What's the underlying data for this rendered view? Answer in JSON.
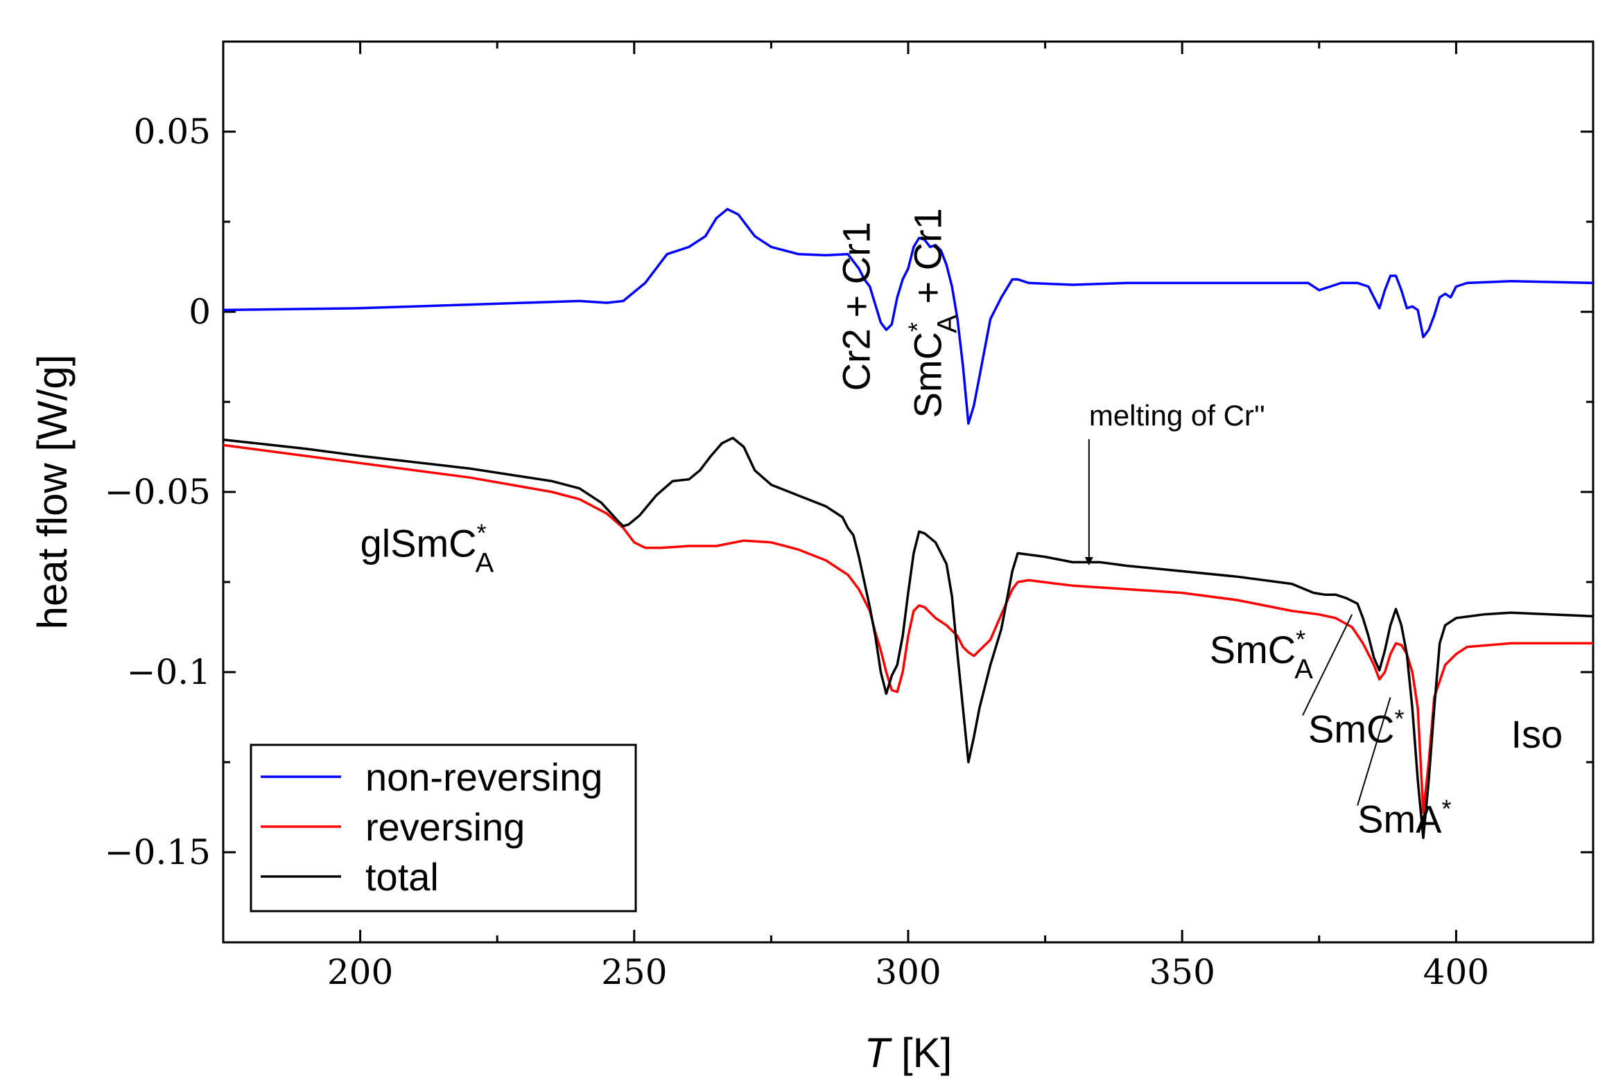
{
  "chart_data": {
    "type": "line",
    "xlabel": {
      "italic": "T",
      "rest": " [K]"
    },
    "ylabel": "heat flow [W/g]",
    "xlim": [
      175,
      425
    ],
    "ylim": [
      -0.175,
      0.075
    ],
    "xticks": [
      200,
      250,
      300,
      350,
      400
    ],
    "yticks": [
      {
        "value": 0.05,
        "label": "0.05"
      },
      {
        "value": 0,
        "label": "0"
      },
      {
        "value": -0.05,
        "label": "−0.05"
      },
      {
        "value": -0.1,
        "label": "−0.1"
      },
      {
        "value": -0.15,
        "label": "−0.15"
      }
    ],
    "legend": {
      "placement": "bottom-left",
      "entries": [
        {
          "name": "non-reversing",
          "color": "#0000ff"
        },
        {
          "name": "reversing",
          "color": "#ff0000"
        },
        {
          "name": "total",
          "color": "#000000"
        }
      ]
    },
    "series": [
      {
        "name": "non-reversing",
        "color": "#0000ff",
        "points": [
          [
            175,
            0.0005
          ],
          [
            200,
            0.001
          ],
          [
            220,
            0.002
          ],
          [
            240,
            0.003
          ],
          [
            245,
            0.0025
          ],
          [
            248,
            0.003
          ],
          [
            252,
            0.008
          ],
          [
            256,
            0.016
          ],
          [
            260,
            0.018
          ],
          [
            263,
            0.021
          ],
          [
            265,
            0.026
          ],
          [
            267,
            0.0285
          ],
          [
            269,
            0.027
          ],
          [
            272,
            0.021
          ],
          [
            275,
            0.018
          ],
          [
            280,
            0.016
          ],
          [
            285,
            0.0157
          ],
          [
            289,
            0.016
          ],
          [
            291,
            0.012
          ],
          [
            292,
            0.009
          ],
          [
            293,
            0.007
          ],
          [
            294,
            0.002
          ],
          [
            295,
            -0.003
          ],
          [
            296,
            -0.005
          ],
          [
            297,
            -0.0035
          ],
          [
            298,
            0.004
          ],
          [
            299,
            0.009
          ],
          [
            300,
            0.012
          ],
          [
            301,
            0.018
          ],
          [
            302,
            0.0205
          ],
          [
            303,
            0.02
          ],
          [
            304,
            0.018
          ],
          [
            305,
            0.0185
          ],
          [
            306,
            0.017
          ],
          [
            307,
            0.013
          ],
          [
            308,
            0.007
          ],
          [
            309,
            -0.002
          ],
          [
            310,
            -0.015
          ],
          [
            311,
            -0.031
          ],
          [
            312,
            -0.026
          ],
          [
            313,
            -0.018
          ],
          [
            314,
            -0.01
          ],
          [
            315,
            -0.002
          ],
          [
            317,
            0.004
          ],
          [
            319,
            0.009
          ],
          [
            320,
            0.009
          ],
          [
            322,
            0.008
          ],
          [
            330,
            0.0075
          ],
          [
            340,
            0.008
          ],
          [
            350,
            0.008
          ],
          [
            360,
            0.008
          ],
          [
            370,
            0.008
          ],
          [
            373,
            0.008
          ],
          [
            375,
            0.006
          ],
          [
            377,
            0.007
          ],
          [
            379,
            0.008
          ],
          [
            382,
            0.008
          ],
          [
            384,
            0.007
          ],
          [
            385,
            0.004
          ],
          [
            386,
            0.001
          ],
          [
            387,
            0.006
          ],
          [
            388,
            0.01
          ],
          [
            389,
            0.01
          ],
          [
            390,
            0.006
          ],
          [
            391,
            0.001
          ],
          [
            392,
            0.0015
          ],
          [
            393,
            0.0005
          ],
          [
            394,
            -0.007
          ],
          [
            395,
            -0.005
          ],
          [
            396,
            -0.001
          ],
          [
            397,
            0.004
          ],
          [
            398,
            0.005
          ],
          [
            399,
            0.004
          ],
          [
            400,
            0.007
          ],
          [
            402,
            0.008
          ],
          [
            410,
            0.0085
          ],
          [
            425,
            0.008
          ]
        ]
      },
      {
        "name": "reversing",
        "color": "#ff0000",
        "points": [
          [
            175,
            -0.037
          ],
          [
            190,
            -0.04
          ],
          [
            200,
            -0.042
          ],
          [
            220,
            -0.046
          ],
          [
            235,
            -0.05
          ],
          [
            240,
            -0.052
          ],
          [
            245,
            -0.056
          ],
          [
            248,
            -0.06
          ],
          [
            250,
            -0.064
          ],
          [
            252,
            -0.0655
          ],
          [
            255,
            -0.0655
          ],
          [
            260,
            -0.065
          ],
          [
            265,
            -0.065
          ],
          [
            270,
            -0.0635
          ],
          [
            275,
            -0.064
          ],
          [
            280,
            -0.066
          ],
          [
            285,
            -0.069
          ],
          [
            289,
            -0.073
          ],
          [
            291,
            -0.077
          ],
          [
            293,
            -0.083
          ],
          [
            294,
            -0.089
          ],
          [
            295,
            -0.094
          ],
          [
            296,
            -0.1
          ],
          [
            297,
            -0.105
          ],
          [
            298,
            -0.1055
          ],
          [
            299,
            -0.1
          ],
          [
            300,
            -0.09
          ],
          [
            301,
            -0.083
          ],
          [
            302,
            -0.0815
          ],
          [
            303,
            -0.082
          ],
          [
            305,
            -0.085
          ],
          [
            307,
            -0.087
          ],
          [
            309,
            -0.09
          ],
          [
            310,
            -0.093
          ],
          [
            311,
            -0.0945
          ],
          [
            312,
            -0.0955
          ],
          [
            313,
            -0.094
          ],
          [
            315,
            -0.091
          ],
          [
            317,
            -0.084
          ],
          [
            319,
            -0.077
          ],
          [
            320,
            -0.075
          ],
          [
            322,
            -0.0745
          ],
          [
            330,
            -0.076
          ],
          [
            340,
            -0.077
          ],
          [
            350,
            -0.078
          ],
          [
            360,
            -0.08
          ],
          [
            370,
            -0.083
          ],
          [
            375,
            -0.084
          ],
          [
            378,
            -0.085
          ],
          [
            381,
            -0.0875
          ],
          [
            383,
            -0.092
          ],
          [
            385,
            -0.098
          ],
          [
            386,
            -0.102
          ],
          [
            387,
            -0.1
          ],
          [
            388,
            -0.095
          ],
          [
            389,
            -0.092
          ],
          [
            390,
            -0.0925
          ],
          [
            391,
            -0.095
          ],
          [
            392,
            -0.1
          ],
          [
            393,
            -0.11
          ],
          [
            394,
            -0.139
          ],
          [
            395,
            -0.125
          ],
          [
            396,
            -0.107
          ],
          [
            398,
            -0.098
          ],
          [
            400,
            -0.095
          ],
          [
            402,
            -0.093
          ],
          [
            410,
            -0.092
          ],
          [
            425,
            -0.092
          ]
        ]
      },
      {
        "name": "total",
        "color": "#000000",
        "points": [
          [
            175,
            -0.0355
          ],
          [
            190,
            -0.038
          ],
          [
            200,
            -0.04
          ],
          [
            220,
            -0.0435
          ],
          [
            235,
            -0.047
          ],
          [
            240,
            -0.049
          ],
          [
            244,
            -0.053
          ],
          [
            247,
            -0.058
          ],
          [
            248,
            -0.0595
          ],
          [
            249,
            -0.059
          ],
          [
            251,
            -0.0565
          ],
          [
            254,
            -0.051
          ],
          [
            257,
            -0.047
          ],
          [
            260,
            -0.0465
          ],
          [
            262,
            -0.044
          ],
          [
            264,
            -0.04
          ],
          [
            266,
            -0.0365
          ],
          [
            268,
            -0.035
          ],
          [
            270,
            -0.0375
          ],
          [
            272,
            -0.044
          ],
          [
            275,
            -0.048
          ],
          [
            280,
            -0.051
          ],
          [
            285,
            -0.054
          ],
          [
            288,
            -0.057
          ],
          [
            289,
            -0.06
          ],
          [
            290,
            -0.062
          ],
          [
            291,
            -0.068
          ],
          [
            292,
            -0.075
          ],
          [
            293,
            -0.082
          ],
          [
            294,
            -0.09
          ],
          [
            295,
            -0.1
          ],
          [
            296,
            -0.106
          ],
          [
            297,
            -0.101
          ],
          [
            298,
            -0.098
          ],
          [
            299,
            -0.09
          ],
          [
            300,
            -0.078
          ],
          [
            301,
            -0.067
          ],
          [
            302,
            -0.061
          ],
          [
            303,
            -0.0615
          ],
          [
            305,
            -0.064
          ],
          [
            307,
            -0.07
          ],
          [
            308,
            -0.079
          ],
          [
            309,
            -0.095
          ],
          [
            310,
            -0.11
          ],
          [
            311,
            -0.125
          ],
          [
            312,
            -0.118
          ],
          [
            313,
            -0.11
          ],
          [
            315,
            -0.098
          ],
          [
            317,
            -0.088
          ],
          [
            319,
            -0.072
          ],
          [
            320,
            -0.067
          ],
          [
            325,
            -0.068
          ],
          [
            330,
            -0.0695
          ],
          [
            335,
            -0.0695
          ],
          [
            340,
            -0.0705
          ],
          [
            350,
            -0.072
          ],
          [
            360,
            -0.0735
          ],
          [
            370,
            -0.0755
          ],
          [
            374,
            -0.078
          ],
          [
            376,
            -0.0785
          ],
          [
            378,
            -0.0785
          ],
          [
            380,
            -0.0795
          ],
          [
            382,
            -0.081
          ],
          [
            383,
            -0.085
          ],
          [
            384,
            -0.09
          ],
          [
            385,
            -0.096
          ],
          [
            386,
            -0.0995
          ],
          [
            387,
            -0.094
          ],
          [
            388,
            -0.087
          ],
          [
            389,
            -0.0825
          ],
          [
            390,
            -0.087
          ],
          [
            391,
            -0.095
          ],
          [
            392,
            -0.11
          ],
          [
            393,
            -0.13
          ],
          [
            394,
            -0.146
          ],
          [
            395,
            -0.13
          ],
          [
            396,
            -0.11
          ],
          [
            397,
            -0.092
          ],
          [
            398,
            -0.087
          ],
          [
            400,
            -0.085
          ],
          [
            405,
            -0.084
          ],
          [
            410,
            -0.0835
          ],
          [
            425,
            -0.0845
          ]
        ]
      }
    ],
    "annotations": [
      {
        "id": "cr2-cr1",
        "text": "Cr2 + Cr1",
        "x": 293,
        "y": -0.022,
        "rotation": -90
      },
      {
        "id": "smca-cr1",
        "main": "SmC",
        "sup": "*",
        "sub": "A",
        "tail": " + Cr1",
        "x": 306,
        "y": -0.0295,
        "rotation": -90
      },
      {
        "id": "melting",
        "text": "melting of Cr''",
        "x": 333,
        "y": -0.0315,
        "arrow_to": [
          333,
          -0.07
        ]
      },
      {
        "id": "glsmca",
        "main": "glSmC",
        "sup": "*",
        "sub": "A",
        "x": 200,
        "y": -0.068
      },
      {
        "id": "smca",
        "main": "SmC",
        "sup": "*",
        "sub": "A",
        "x": 355,
        "y": -0.0975
      },
      {
        "id": "smc",
        "main": "SmC",
        "sup": "*",
        "x": 373,
        "y": -0.1195,
        "arrow_from": [
          372,
          -0.112
        ],
        "arrow_to": [
          381,
          -0.084
        ]
      },
      {
        "id": "sma",
        "main": "SmA",
        "sup": "*",
        "x": 382,
        "y": -0.1445,
        "arrow_from": [
          382,
          -0.137
        ],
        "arrow_to": [
          388,
          -0.107
        ]
      },
      {
        "id": "iso",
        "text": "Iso",
        "x": 410,
        "y": -0.121
      }
    ]
  }
}
